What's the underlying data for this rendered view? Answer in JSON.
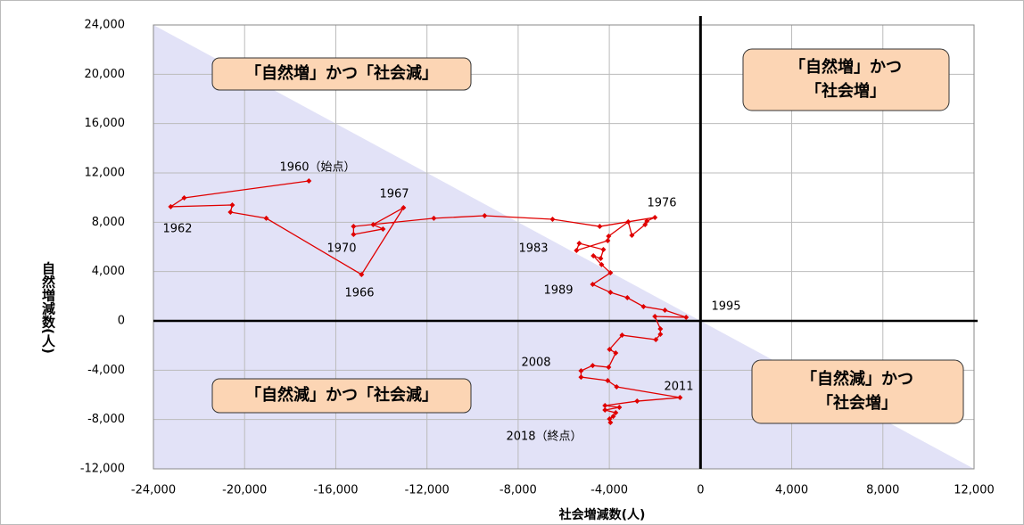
{
  "chart_data": {
    "type": "line",
    "xlabel": "社会増減数(人)",
    "ylabel": "自然増減数(人)",
    "x": [
      -17180,
      -22650,
      -23240,
      -20540,
      -20620,
      -19050,
      -14870,
      -13030,
      -14360,
      -13930,
      -15220,
      -15220,
      -11700,
      -9470,
      -6490,
      -4420,
      -2000,
      -2350,
      -2430,
      -3010,
      -3170,
      -4030,
      -4070,
      -5440,
      -5320,
      -4260,
      -4380,
      -4700,
      -4340,
      -3950,
      -4730,
      -3950,
      -3210,
      -2500,
      -1560,
      -630,
      -2000,
      -1760,
      -1760,
      -1960,
      -3440,
      -3990,
      -3720,
      -4030,
      -4730,
      -5240,
      -5240,
      -4070,
      -3680,
      -900,
      -2780,
      -4190,
      -3560,
      -4190,
      -3720,
      -3830,
      -3990,
      -3950
    ],
    "series": [
      {
        "color": "#e00000",
        "values": [
          11350,
          9980,
          9260,
          9400,
          8820,
          8320,
          3760,
          9180,
          7810,
          7450,
          7010,
          7660,
          8320,
          8530,
          8240,
          7660,
          8390,
          8100,
          7810,
          6940,
          8030,
          6870,
          6510,
          5710,
          6290,
          5780,
          5060,
          5280,
          4560,
          3900,
          2960,
          2310,
          1880,
          1160,
          870,
          290,
          360,
          -650,
          -1080,
          -1520,
          -1160,
          -2310,
          -2600,
          -3760,
          -3620,
          -4050,
          -4560,
          -4840,
          -5350,
          -6220,
          -6510,
          -6870,
          -7010,
          -7230,
          -7450,
          -7740,
          -7950,
          -8240
        ]
      }
    ],
    "xlim": [
      -24000,
      12000
    ],
    "ylim": [
      -12000,
      24000
    ],
    "xticks": [
      {
        "value": -24000,
        "label": "-24,000"
      },
      {
        "value": -20000,
        "label": "-20,000"
      },
      {
        "value": -16000,
        "label": "-16,000"
      },
      {
        "value": -12000,
        "label": "-12,000"
      },
      {
        "value": -8000,
        "label": "-8,000"
      },
      {
        "value": -4000,
        "label": "-4,000"
      },
      0,
      {
        "value": 4000,
        "label": "4,000"
      },
      {
        "value": 8000,
        "label": "8,000"
      },
      {
        "value": 12000,
        "label": "12,000"
      }
    ],
    "yticks": [
      {
        "value": -12000,
        "label": "-12,000"
      },
      {
        "value": -8000,
        "label": "-8,000"
      },
      {
        "value": -4000,
        "label": "-4,000"
      },
      0,
      {
        "value": 4000,
        "label": "4,000"
      },
      {
        "value": 8000,
        "label": "8,000"
      },
      {
        "value": 12000,
        "label": "12,000"
      },
      {
        "value": 16000,
        "label": "16,000"
      },
      {
        "value": 20000,
        "label": "20,000"
      },
      {
        "value": 24000,
        "label": "24,000"
      }
    ],
    "grid": true,
    "annotations": [
      "1960（始点）",
      "1962",
      "1967",
      "1970",
      "1966",
      "1976",
      "1983",
      "1989",
      "1995",
      "2008",
      "2011",
      "2018（終点）"
    ],
    "quadrant_labels": [
      [
        "「自然増」かつ「社会減」"
      ],
      [
        "「自然増」かつ",
        "「社会増」"
      ],
      [
        "「自然減」かつ「社会減」"
      ],
      [
        "「自然減」かつ",
        "「社会増」"
      ]
    ]
  }
}
